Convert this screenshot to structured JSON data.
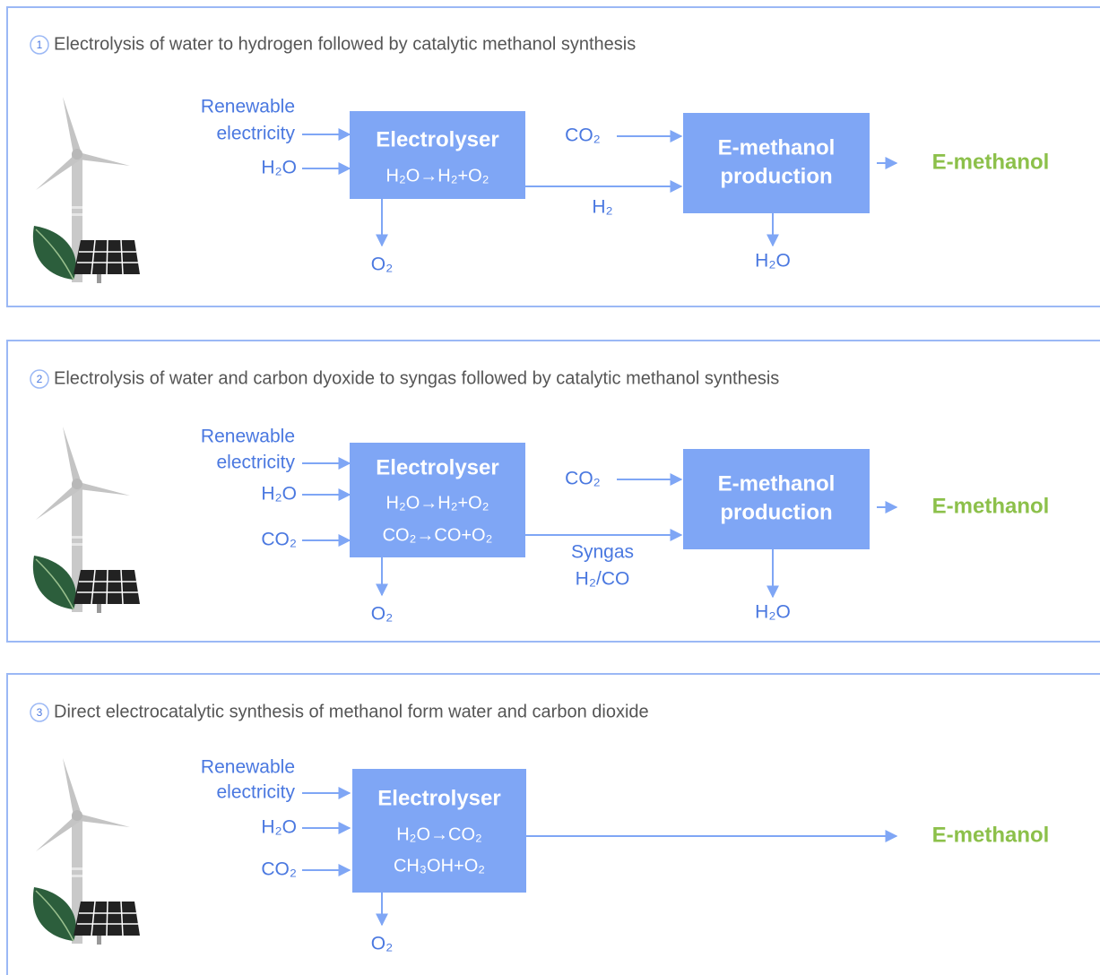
{
  "panels": [
    {
      "number": "1",
      "title": "Electrolysis of water to hydrogen followed by catalytic methanol synthesis",
      "electricity": [
        "Renewable",
        "electricity"
      ],
      "inputs": [
        "H₂O"
      ],
      "electrolyser": {
        "name": "Electrolyser",
        "reactions": [
          "H₂O→H₂+O₂"
        ]
      },
      "byproduct": "O₂",
      "intermediate": [
        "H₂"
      ],
      "co2_input": "CO₂",
      "production": {
        "name": [
          "E-methanol",
          "production"
        ],
        "byproduct": "H₂O"
      },
      "output": "E-methanol"
    },
    {
      "number": "2",
      "title": "Electrolysis of water and carbon dyoxide to syngas followed by catalytic methanol synthesis",
      "electricity": [
        "Renewable",
        "electricity"
      ],
      "inputs": [
        "H₂O",
        "CO₂"
      ],
      "electrolyser": {
        "name": "Electrolyser",
        "reactions": [
          "H₂O→H₂+O₂",
          "CO₂→CO+O₂"
        ]
      },
      "byproduct": "O₂",
      "intermediate": [
        "Syngas",
        "H₂/CO"
      ],
      "co2_input": "CO₂",
      "production": {
        "name": [
          "E-methanol",
          "production"
        ],
        "byproduct": "H₂O"
      },
      "output": "E-methanol"
    },
    {
      "number": "3",
      "title": "Direct electrocatalytic synthesis of methanol form water and carbon dioxide",
      "electricity": [
        "Renewable",
        "electricity"
      ],
      "inputs": [
        "H₂O",
        "CO₂"
      ],
      "electrolyser": {
        "name": "Electrolyser",
        "reactions": [
          "H₂O→CO₂",
          "CH₃OH+O₂"
        ]
      },
      "byproduct": "O₂",
      "output": "E-methanol"
    }
  ]
}
